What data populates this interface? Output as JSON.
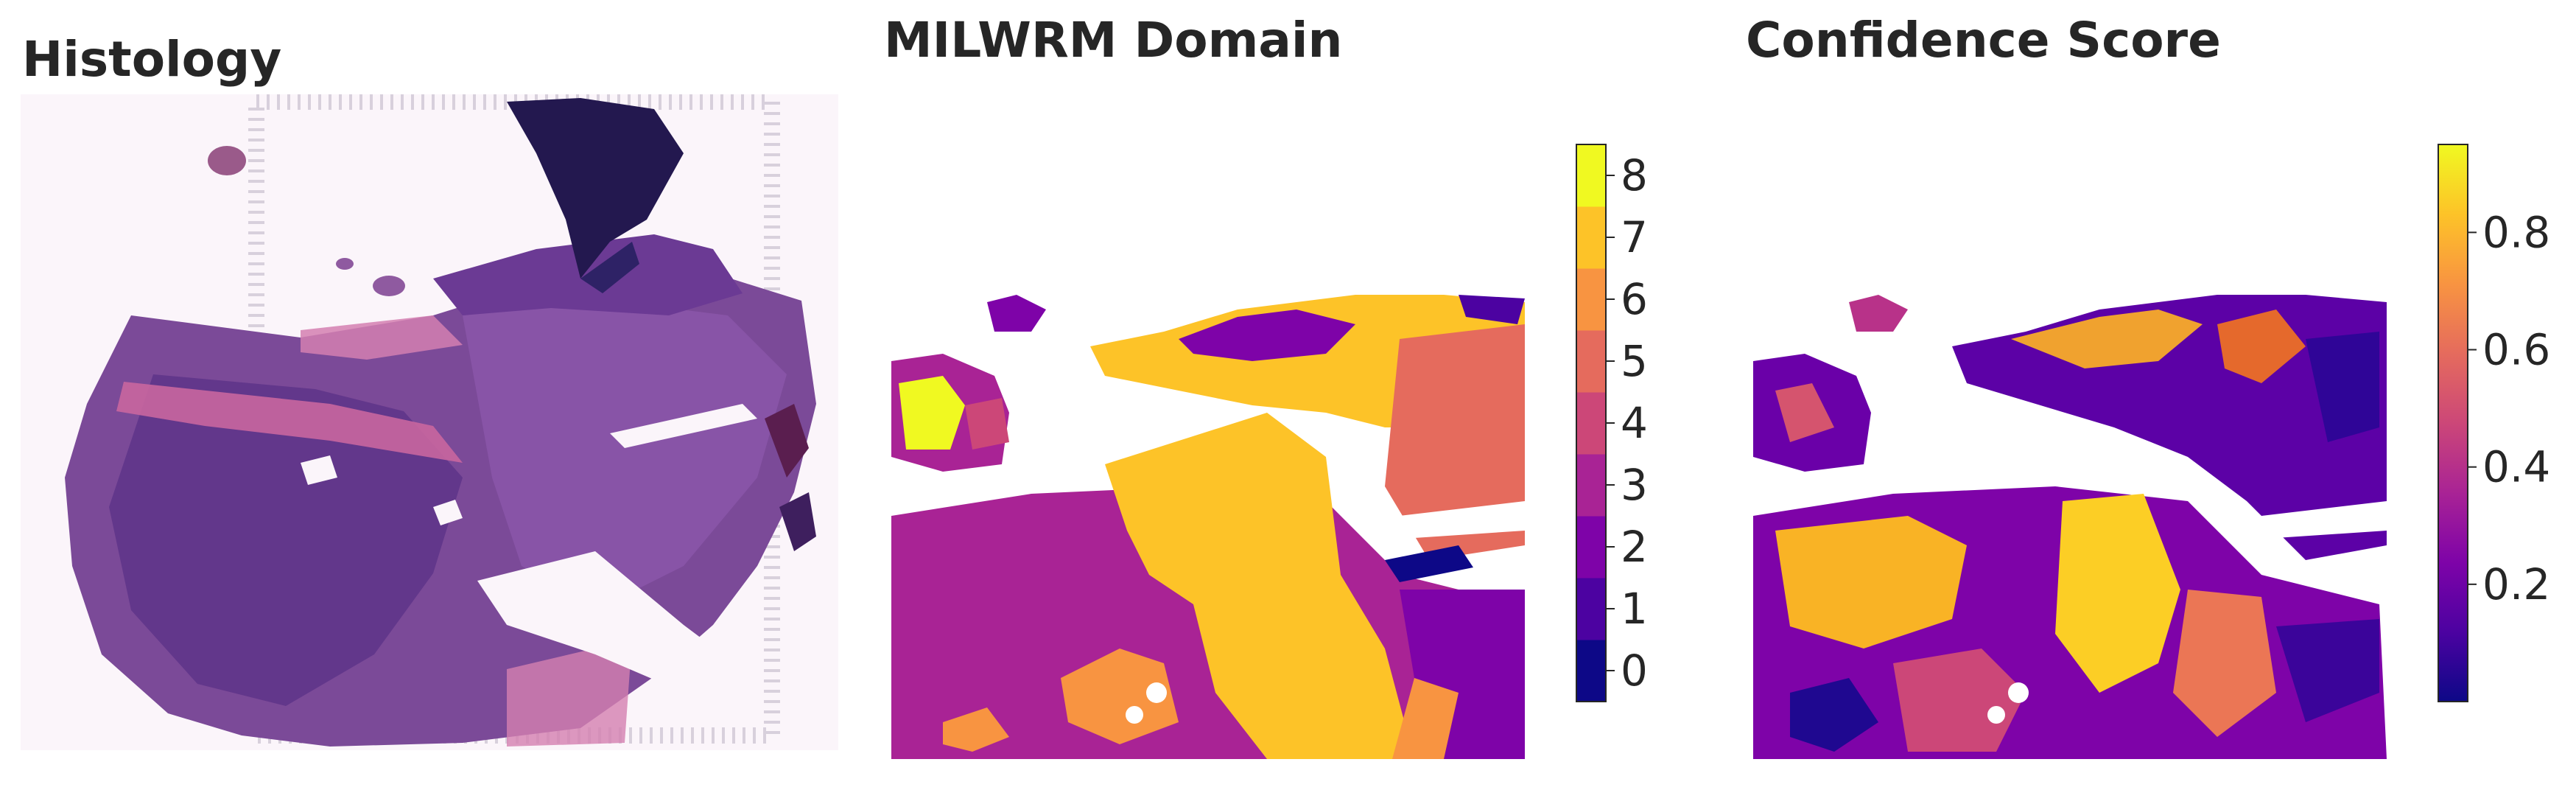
{
  "panels": {
    "histology": {
      "title": "Histology"
    },
    "domain": {
      "title": "MILWRM Domain"
    },
    "confidence": {
      "title": "Confidence Score"
    }
  },
  "chart_data": [
    {
      "type": "image",
      "title": "Histology",
      "description_colors": {
        "tissue": "#7a3f8f",
        "dense": "#3d1f6e",
        "stroma": "#c46a9b",
        "background": "#fbf3f9"
      }
    },
    {
      "type": "heatmap",
      "title": "MILWRM Domain",
      "colormap": "plasma",
      "colorbar": {
        "min": -0.5,
        "max": 8.5,
        "ticks": [
          0,
          1,
          2,
          3,
          4,
          5,
          6,
          7,
          8
        ],
        "discrete_levels": 9
      },
      "domain_colors": {
        "0": "#0d0887",
        "1": "#4c02a1",
        "2": "#7e03a8",
        "3": "#a92395",
        "4": "#cc4778",
        "5": "#e56b5d",
        "6": "#f89441",
        "7": "#fdc328",
        "8": "#f0f921"
      },
      "dominant_domains": [
        3,
        7,
        5,
        2,
        6
      ]
    },
    {
      "type": "heatmap",
      "title": "Confidence Score",
      "colormap": "plasma",
      "colorbar": {
        "min": 0.0,
        "max": 0.95,
        "ticks": [
          0.2,
          0.4,
          0.6,
          0.8
        ]
      }
    }
  ]
}
